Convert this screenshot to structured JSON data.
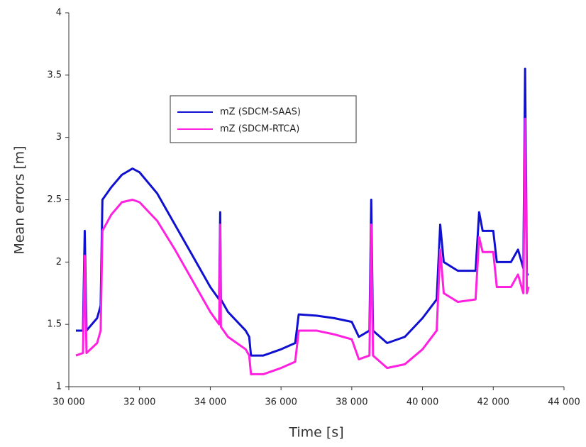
{
  "chart_data": {
    "type": "line",
    "xlabel": "Time [s]",
    "ylabel": "Mean errors [m]",
    "xlim": [
      30000,
      44000
    ],
    "ylim": [
      1,
      4
    ],
    "xticks": [
      {
        "value": 30000,
        "label": "30 000"
      },
      {
        "value": 32000,
        "label": "32 000"
      },
      {
        "value": 34000,
        "label": "34 000"
      },
      {
        "value": 36000,
        "label": "36 000"
      },
      {
        "value": 38000,
        "label": "38 000"
      },
      {
        "value": 40000,
        "label": "40 000"
      },
      {
        "value": 42000,
        "label": "42 000"
      },
      {
        "value": 44000,
        "label": "44 000"
      }
    ],
    "yticks": [
      1,
      1.5,
      2,
      2.5,
      3,
      3.5,
      4
    ],
    "x": [
      30200,
      30400,
      30450,
      30500,
      30800,
      30900,
      30950,
      31200,
      31500,
      31800,
      32000,
      32500,
      33000,
      33500,
      34000,
      34250,
      34280,
      34300,
      34500,
      35000,
      35100,
      35150,
      35500,
      36000,
      36400,
      36500,
      37000,
      37500,
      38000,
      38200,
      38500,
      38550,
      38600,
      39000,
      39500,
      40000,
      40400,
      40500,
      40600,
      41000,
      41500,
      41600,
      41700,
      42000,
      42100,
      42500,
      42700,
      42850,
      42900,
      42950,
      43000
    ],
    "series": [
      {
        "name": "mZ (SDCM-SAAS)",
        "color": "#1010d0",
        "values": [
          1.45,
          1.45,
          2.25,
          1.45,
          1.55,
          1.65,
          2.5,
          2.6,
          2.7,
          2.75,
          2.72,
          2.55,
          2.3,
          2.05,
          1.8,
          1.7,
          2.4,
          1.7,
          1.6,
          1.45,
          1.4,
          1.25,
          1.25,
          1.3,
          1.35,
          1.58,
          1.57,
          1.55,
          1.52,
          1.4,
          1.45,
          2.5,
          1.45,
          1.35,
          1.4,
          1.55,
          1.7,
          2.3,
          2.0,
          1.93,
          1.93,
          2.4,
          2.25,
          2.25,
          2.0,
          2.0,
          2.1,
          1.95,
          3.55,
          1.9,
          1.9
        ]
      },
      {
        "name": "mZ (SDCM-RTCA)",
        "color": "#ff20e0",
        "values": [
          1.25,
          1.27,
          2.05,
          1.27,
          1.35,
          1.45,
          2.25,
          2.38,
          2.48,
          2.5,
          2.48,
          2.33,
          2.1,
          1.85,
          1.6,
          1.5,
          2.3,
          1.48,
          1.4,
          1.3,
          1.25,
          1.1,
          1.1,
          1.15,
          1.2,
          1.45,
          1.45,
          1.42,
          1.38,
          1.22,
          1.25,
          2.3,
          1.25,
          1.15,
          1.18,
          1.3,
          1.45,
          2.1,
          1.75,
          1.68,
          1.7,
          2.2,
          2.08,
          2.08,
          1.8,
          1.8,
          1.9,
          1.75,
          3.15,
          1.75,
          1.8
        ]
      }
    ]
  }
}
